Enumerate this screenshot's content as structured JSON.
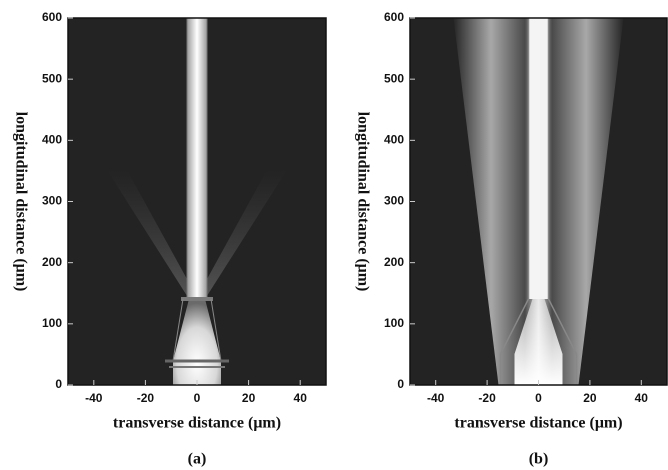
{
  "chart_data": [
    {
      "type": "field",
      "xlabel": "transverse distance (μm)",
      "ylabel": "longitudinal distance (μm)",
      "caption": "(a)",
      "xlim": [
        -50,
        50
      ],
      "xticks": [
        -40,
        -20,
        0,
        20,
        40
      ],
      "ylim": [
        0,
        600
      ],
      "yticks": [
        0,
        100,
        200,
        300,
        400,
        500,
        600
      ]
    },
    {
      "type": "field",
      "xlabel": "transverse distance (μm)",
      "ylabel": "longitudinal distance (μm)",
      "caption": "(b)",
      "xlim": [
        -50,
        50
      ],
      "xticks": [
        -40,
        -20,
        0,
        20,
        40
      ],
      "ylim": [
        0,
        600
      ],
      "yticks": [
        0,
        100,
        200,
        300,
        400,
        500,
        600
      ]
    }
  ]
}
